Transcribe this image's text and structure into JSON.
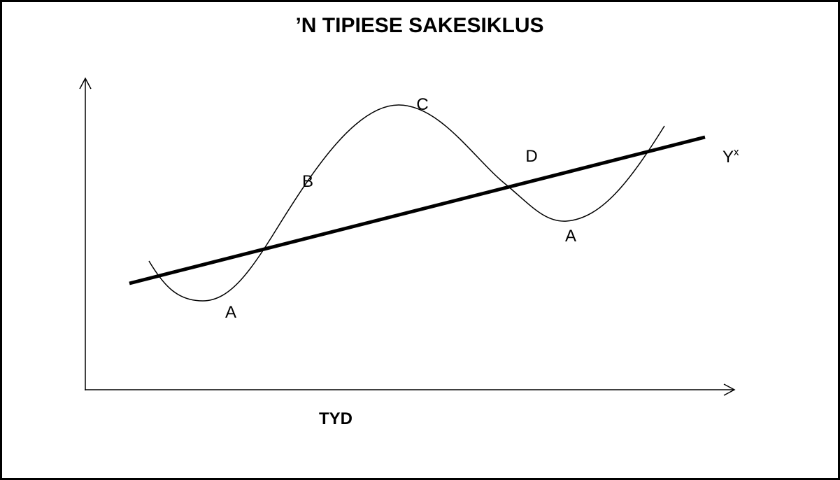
{
  "title": "’N TIPIESE SAKESIKLUS",
  "x_axis_label": "TYD",
  "points": [
    {
      "label": "A"
    },
    {
      "label": "B"
    },
    {
      "label": "C"
    },
    {
      "label": "D"
    },
    {
      "label": "A"
    }
  ],
  "trend_label": {
    "text": "Y",
    "superscript": "x"
  }
}
